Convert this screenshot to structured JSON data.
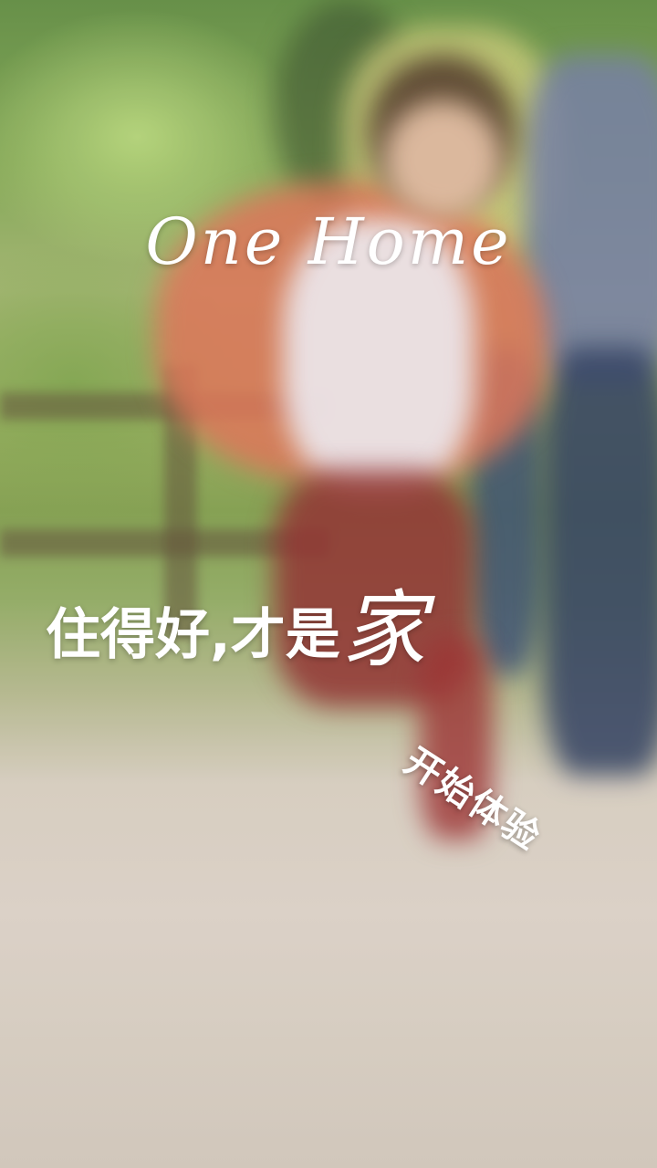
{
  "splash": {
    "brand": "One Home",
    "slogan": "住得好,才是",
    "slogan_accent": "家",
    "start_button": "开始体验"
  },
  "colors": {
    "text": "#ffffff"
  },
  "background": {
    "icon": "family-photo-background"
  }
}
